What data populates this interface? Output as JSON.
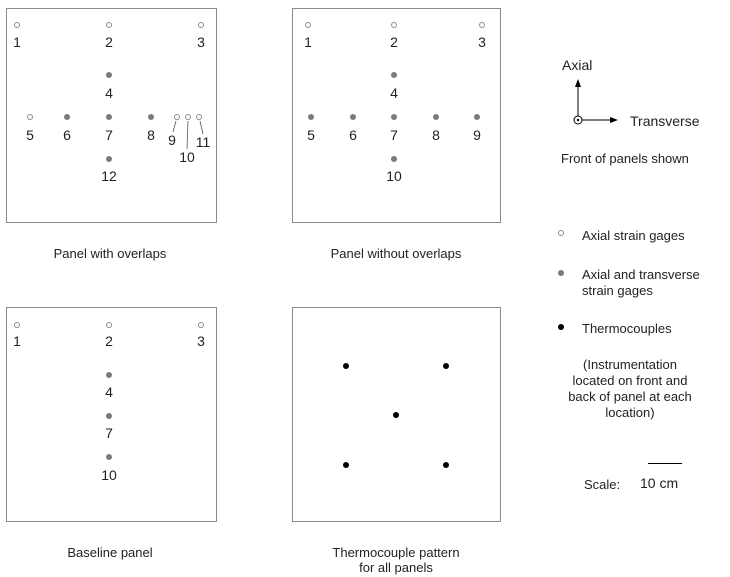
{
  "panels": [
    {
      "caption": "Panel with overlaps",
      "points": [
        {
          "label": "1",
          "kind": "axial"
        },
        {
          "label": "2",
          "kind": "axial"
        },
        {
          "label": "3",
          "kind": "axial"
        },
        {
          "label": "4",
          "kind": "biaxial"
        },
        {
          "label": "5",
          "kind": "axial"
        },
        {
          "label": "6",
          "kind": "biaxial"
        },
        {
          "label": "7",
          "kind": "biaxial"
        },
        {
          "label": "8",
          "kind": "biaxial"
        },
        {
          "label": "9",
          "kind": "axial"
        },
        {
          "label": "10",
          "kind": "axial"
        },
        {
          "label": "11",
          "kind": "axial"
        },
        {
          "label": "12",
          "kind": "biaxial"
        }
      ]
    },
    {
      "caption": "Panel without overlaps",
      "points": [
        {
          "label": "1",
          "kind": "axial"
        },
        {
          "label": "2",
          "kind": "axial"
        },
        {
          "label": "3",
          "kind": "axial"
        },
        {
          "label": "4",
          "kind": "biaxial"
        },
        {
          "label": "5",
          "kind": "biaxial"
        },
        {
          "label": "6",
          "kind": "biaxial"
        },
        {
          "label": "7",
          "kind": "biaxial"
        },
        {
          "label": "8",
          "kind": "biaxial"
        },
        {
          "label": "9",
          "kind": "biaxial"
        },
        {
          "label": "10",
          "kind": "biaxial"
        }
      ]
    },
    {
      "caption": "Baseline panel",
      "points": [
        {
          "label": "1",
          "kind": "axial"
        },
        {
          "label": "2",
          "kind": "axial"
        },
        {
          "label": "3",
          "kind": "axial"
        },
        {
          "label": "4",
          "kind": "biaxial"
        },
        {
          "label": "7",
          "kind": "biaxial"
        },
        {
          "label": "10",
          "kind": "biaxial"
        }
      ]
    },
    {
      "caption_line1": "Thermocouple pattern",
      "caption_line2": "for all panels",
      "points": [
        {
          "kind": "tc"
        },
        {
          "kind": "tc"
        },
        {
          "kind": "tc"
        },
        {
          "kind": "tc"
        },
        {
          "kind": "tc"
        }
      ]
    }
  ],
  "axes": {
    "axial_label": "Axial",
    "transverse_label": "Transverse",
    "front_note": "Front of panels shown"
  },
  "legend": {
    "axial": "Axial strain gages",
    "biaxial_line1": "Axial and transverse",
    "biaxial_line2": "strain gages",
    "tc": "Thermocouples",
    "note_line1": "(Instrumentation",
    "note_line2": "located on front and",
    "note_line3": "back of panel at each",
    "note_line4": "location)"
  },
  "scale": {
    "label": "Scale:",
    "value": "10 cm"
  },
  "colors": {
    "axial_gage": "#ffffff",
    "biaxial_gage": "#7a7a7a",
    "thermocouple": "#000000",
    "panel_border": "#8a8a8a"
  }
}
